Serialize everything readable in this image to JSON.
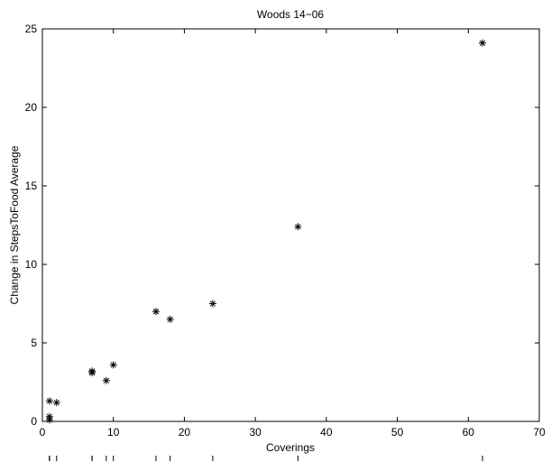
{
  "chart_data": {
    "type": "scatter",
    "title": "Woods 14−06",
    "xlabel": "Coverings",
    "ylabel": "Change in StepsToFood Average",
    "xlim": [
      0,
      70
    ],
    "ylim": [
      0,
      25
    ],
    "xticks": [
      0,
      10,
      20,
      30,
      40,
      50,
      60,
      70
    ],
    "yticks": [
      0,
      5,
      10,
      15,
      20,
      25
    ],
    "xtick_labels": [
      "0",
      "10",
      "20",
      "30",
      "40",
      "50",
      "60",
      "70"
    ],
    "ytick_labels": [
      "0",
      "5",
      "10",
      "15",
      "20",
      "25"
    ],
    "grid": false,
    "marker": "asterisk",
    "points": [
      {
        "x": 62,
        "y": 24.1
      },
      {
        "x": 36,
        "y": 12.4
      },
      {
        "x": 24,
        "y": 7.5
      },
      {
        "x": 16,
        "y": 7.0
      },
      {
        "x": 18,
        "y": 6.5
      },
      {
        "x": 10,
        "y": 3.6
      },
      {
        "x": 7,
        "y": 3.2
      },
      {
        "x": 7,
        "y": 3.1
      },
      {
        "x": 9,
        "y": 2.6
      },
      {
        "x": 1,
        "y": 1.3
      },
      {
        "x": 2,
        "y": 1.2
      },
      {
        "x": 1,
        "y": 0.3
      },
      {
        "x": 1,
        "y": 0.1
      }
    ]
  }
}
